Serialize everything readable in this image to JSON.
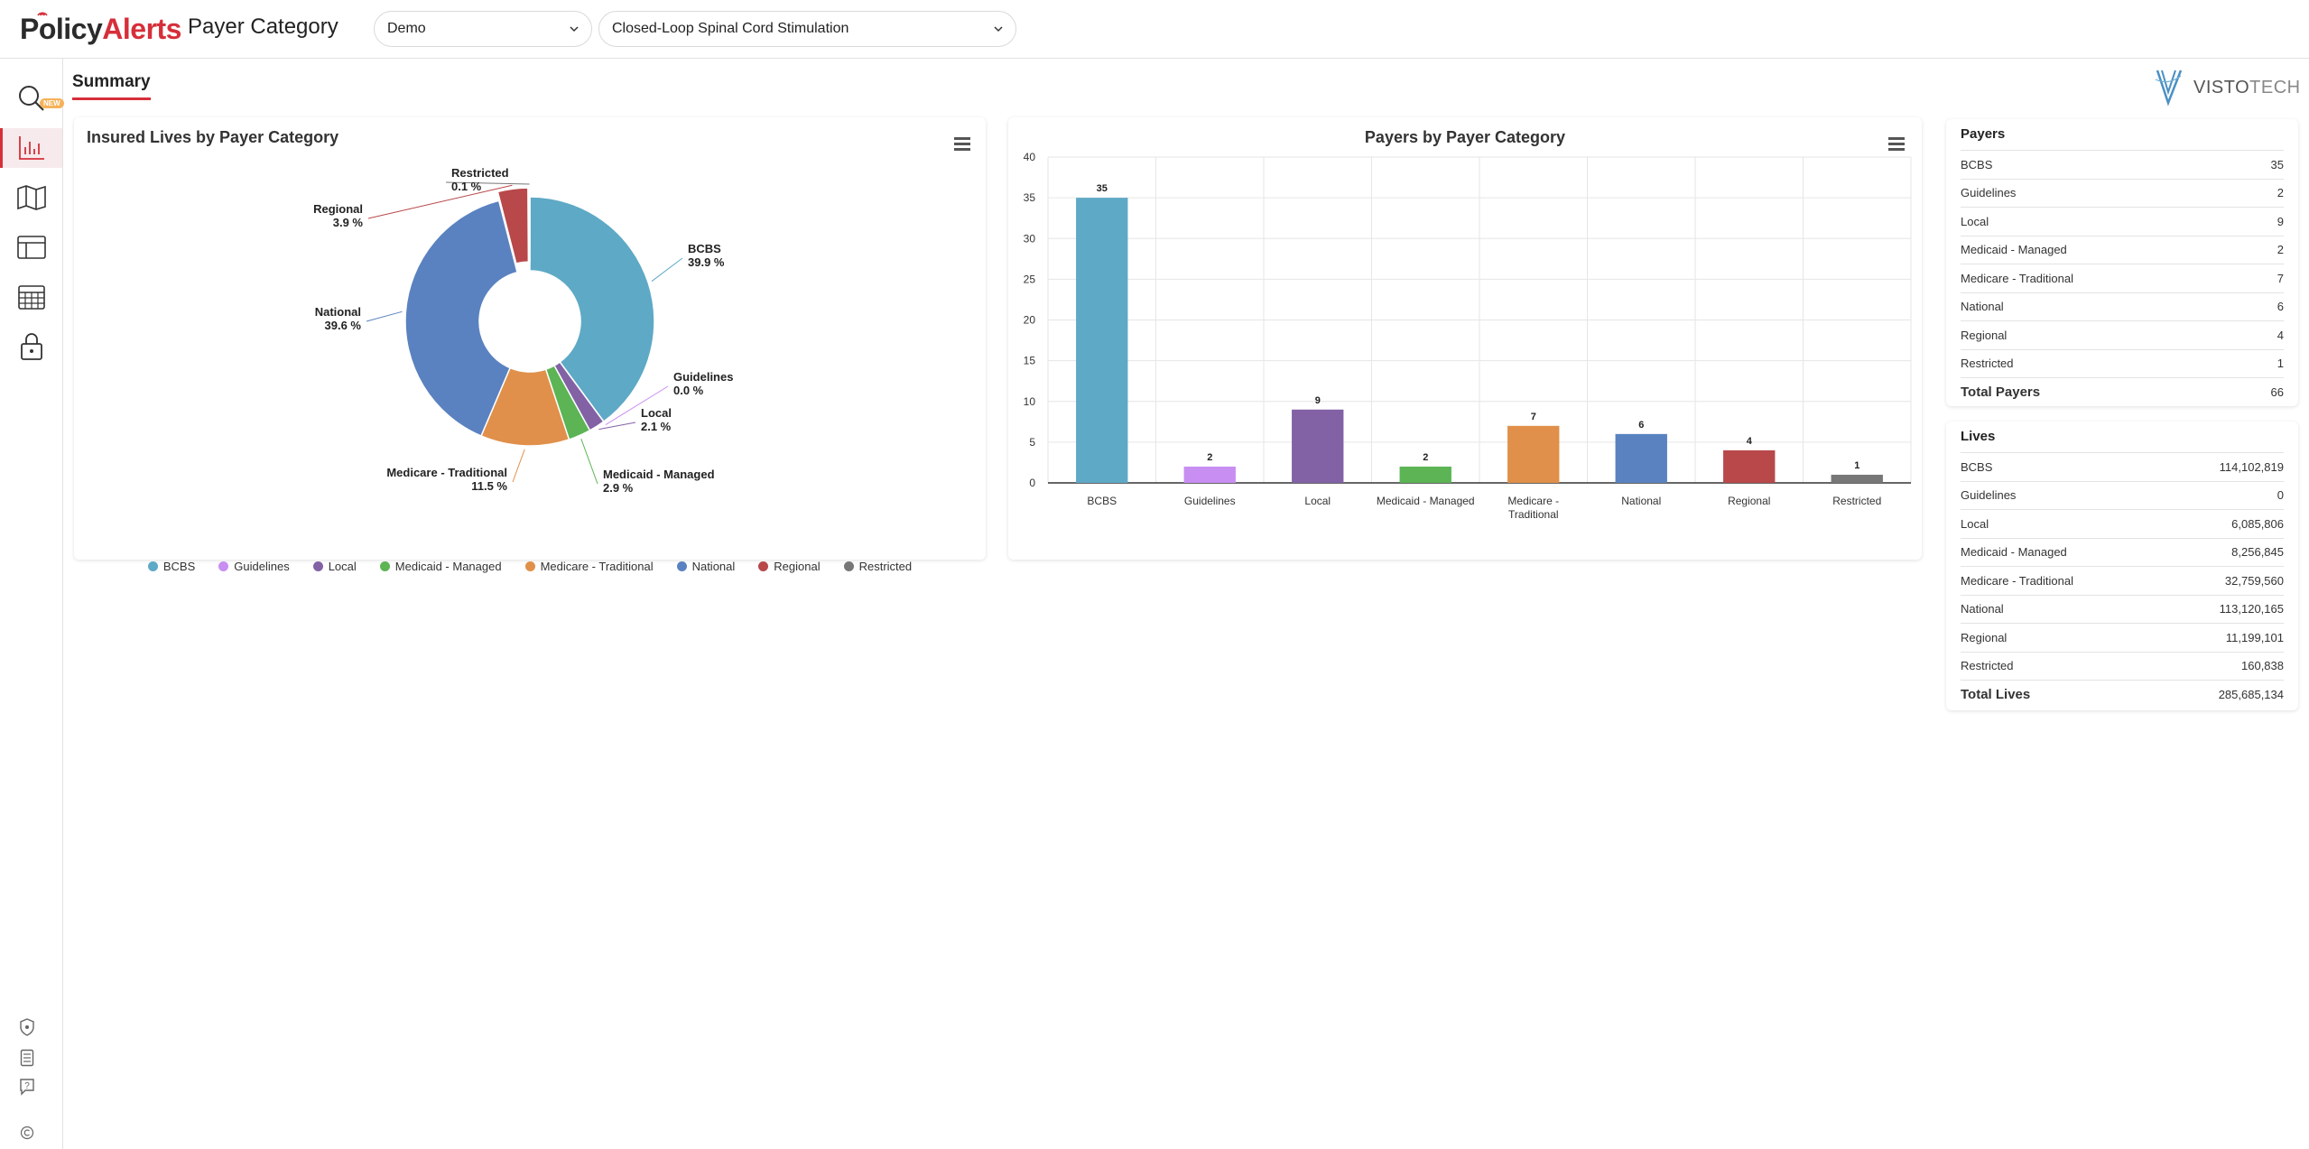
{
  "header": {
    "logo_part1": "Policy",
    "logo_part2": "Alerts",
    "page_title": "Payer Category",
    "client_select": "Demo",
    "therapy_select": "Closed-Loop Spinal Cord Stimulation"
  },
  "sidebar": {
    "badge": "NEW",
    "items": [
      {
        "icon": "search-icon"
      },
      {
        "icon": "bar-chart-icon"
      },
      {
        "icon": "map-icon"
      },
      {
        "icon": "layout-icon"
      },
      {
        "icon": "calendar-icon"
      },
      {
        "icon": "lock-icon"
      }
    ],
    "footer": [
      {
        "icon": "shield-icon"
      },
      {
        "icon": "document-icon"
      },
      {
        "icon": "help-icon"
      },
      {
        "icon": "copyright-icon"
      }
    ]
  },
  "tabs": {
    "summary": "Summary"
  },
  "brand": {
    "visto": "VISTO",
    "tech": "TECH"
  },
  "colors": {
    "BCBS": "#5ea9c6",
    "Guidelines": "#c88ef2",
    "Local": "#8262a5",
    "Medicaid - Managed": "#5cb455",
    "Medicare - Traditional": "#e0904a",
    "National": "#5a82c0",
    "Regional": "#b8484a",
    "Restricted": "#777777",
    "accent": "#d62f3a"
  },
  "chart_data": [
    {
      "type": "pie",
      "title": "Insured Lives by Payer Category",
      "categories": [
        "BCBS",
        "Guidelines",
        "Local",
        "Medicaid - Managed",
        "Medicare - Traditional",
        "National",
        "Regional",
        "Restricted"
      ],
      "values": [
        39.9,
        0.0,
        2.1,
        2.9,
        11.5,
        39.6,
        3.9,
        0.1
      ],
      "value_labels": [
        "39.9 %",
        "0.0 %",
        "2.1 %",
        "2.9 %",
        "11.5 %",
        "39.6 %",
        "3.9 %",
        "0.1 %"
      ],
      "legend": "bottom"
    },
    {
      "type": "bar",
      "title": "Payers by Payer Category",
      "categories": [
        "BCBS",
        "Guidelines",
        "Local",
        "Medicaid - Managed",
        "Medicare - Traditional",
        "National",
        "Regional",
        "Restricted"
      ],
      "values": [
        35,
        2,
        9,
        2,
        7,
        6,
        4,
        1
      ],
      "ylim": [
        0,
        40
      ],
      "yticks": [
        0,
        5,
        10,
        15,
        20,
        25,
        30,
        35,
        40
      ],
      "grid": true
    }
  ],
  "payers_table": {
    "title": "Payers",
    "rows": [
      {
        "label": "BCBS",
        "value": "35"
      },
      {
        "label": "Guidelines",
        "value": "2"
      },
      {
        "label": "Local",
        "value": "9"
      },
      {
        "label": "Medicaid - Managed",
        "value": "2"
      },
      {
        "label": "Medicare - Traditional",
        "value": "7"
      },
      {
        "label": "National",
        "value": "6"
      },
      {
        "label": "Regional",
        "value": "4"
      },
      {
        "label": "Restricted",
        "value": "1"
      }
    ],
    "total_label": "Total Payers",
    "total_value": "66"
  },
  "lives_table": {
    "title": "Lives",
    "rows": [
      {
        "label": "BCBS",
        "value": "114,102,819"
      },
      {
        "label": "Guidelines",
        "value": "0"
      },
      {
        "label": "Local",
        "value": "6,085,806"
      },
      {
        "label": "Medicaid - Managed",
        "value": "8,256,845"
      },
      {
        "label": "Medicare - Traditional",
        "value": "32,759,560"
      },
      {
        "label": "National",
        "value": "113,120,165"
      },
      {
        "label": "Regional",
        "value": "11,199,101"
      },
      {
        "label": "Restricted",
        "value": "160,838"
      }
    ],
    "total_label": "Total Lives",
    "total_value": "285,685,134"
  }
}
